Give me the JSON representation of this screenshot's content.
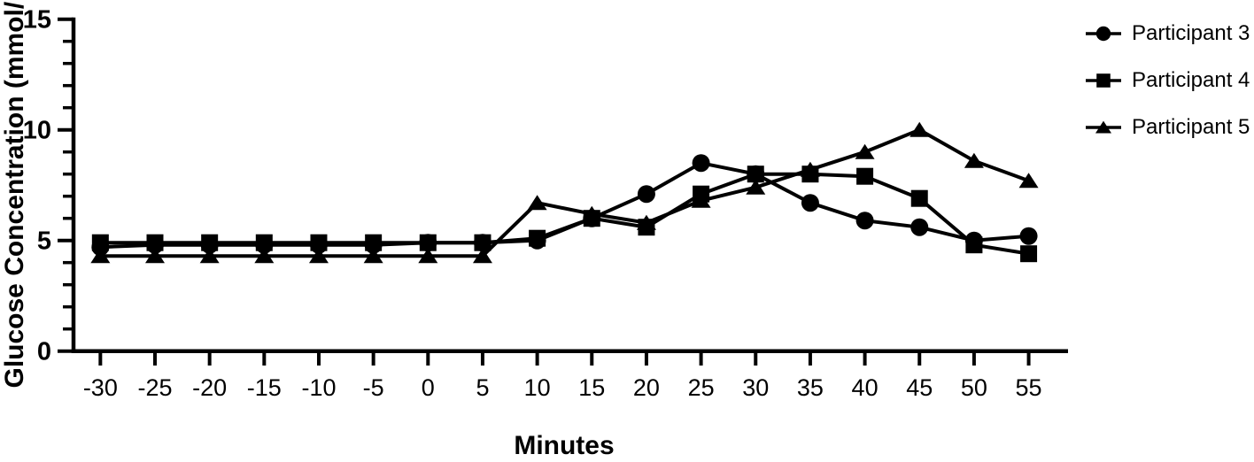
{
  "figure": {
    "background": "#ffffff",
    "ink_color": "#000000"
  },
  "chart_data": {
    "type": "line",
    "title": "",
    "xlabel": "Minutes",
    "ylabel": "Glucose Concentration (mmol/L)",
    "x": [
      -30,
      -25,
      -20,
      -15,
      -10,
      -5,
      0,
      5,
      10,
      15,
      20,
      25,
      30,
      35,
      40,
      45,
      50,
      55
    ],
    "xticks": [
      -30,
      -25,
      -20,
      -15,
      -10,
      -5,
      0,
      5,
      10,
      15,
      20,
      25,
      30,
      35,
      40,
      45,
      50,
      55
    ],
    "ylim": [
      0,
      15
    ],
    "yticks_major": [
      0,
      5,
      10,
      15
    ],
    "ytick_minor_step": 1,
    "grid": false,
    "legend_position": "right",
    "series": [
      {
        "name": "Participant 3",
        "marker": "circle",
        "values": [
          4.7,
          4.8,
          4.8,
          4.8,
          4.8,
          4.8,
          4.9,
          4.9,
          5.0,
          6.0,
          7.1,
          8.5,
          8.0,
          6.7,
          5.9,
          5.6,
          5.0,
          5.2
        ]
      },
      {
        "name": "Participant 4",
        "marker": "square",
        "values": [
          4.9,
          4.9,
          4.9,
          4.9,
          4.9,
          4.9,
          4.9,
          4.9,
          5.1,
          6.0,
          5.6,
          7.1,
          8.0,
          8.0,
          7.9,
          6.9,
          4.8,
          4.4
        ]
      },
      {
        "name": "Participant 5",
        "marker": "triangle",
        "values": [
          4.3,
          4.3,
          4.3,
          4.3,
          4.3,
          4.3,
          4.3,
          4.3,
          6.7,
          6.2,
          5.8,
          6.8,
          7.4,
          8.2,
          9.0,
          10.0,
          8.6,
          7.7
        ]
      }
    ]
  }
}
